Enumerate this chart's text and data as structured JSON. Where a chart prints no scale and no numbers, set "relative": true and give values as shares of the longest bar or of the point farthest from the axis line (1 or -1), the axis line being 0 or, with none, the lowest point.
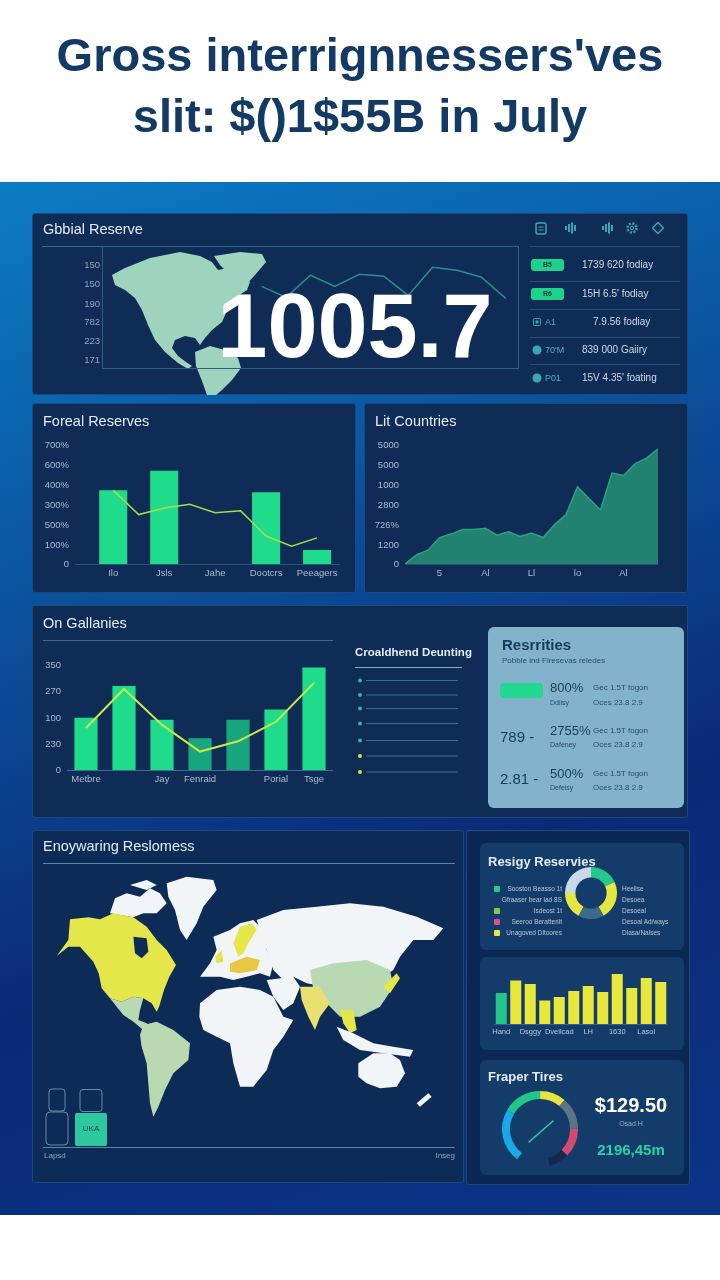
{
  "chart_data": [
    {
      "type": "other",
      "title": "Gross interrignnessers'ves slit: $()1$55B in July"
    },
    {
      "type": "line",
      "title": "Gbbial Reserve",
      "categories": [
        null,
        null,
        null,
        null,
        null,
        null,
        null,
        null,
        null,
        null,
        null,
        null,
        null,
        null,
        null,
        null,
        null
      ],
      "values": [
        null,
        null,
        null,
        null,
        null,
        null,
        0.81,
        0.7,
        0.92,
        0.81,
        0.93,
        0.91,
        0.72,
        1,
        0.97,
        0.9,
        0.69
      ],
      "color": "#2e8c8c",
      "relative": true,
      "annotations": [
        "150",
        "150",
        "190",
        "782",
        "223",
        "171",
        "1005.7"
      ]
    },
    {
      "type": "other",
      "annotations": [
        "B5",
        "1739 620 fodiay",
        "R6",
        "15H 6.5' fodiay",
        "A1",
        "7.9.56 fodiay",
        "70'M",
        "839 000 Gaiiry",
        "P01",
        "15V 4.35' foating"
      ]
    },
    {
      "type": "bar",
      "title": "Foreal Reserves",
      "categories": [
        "Ilo",
        null,
        "Jsls",
        null,
        "Jahe",
        null,
        "Dootcrs",
        null,
        "Peeagers"
      ],
      "series": [
        {
          "type": "bar",
          "color": "#1fdc8c",
          "values": [
            0.79,
            null,
            1,
            null,
            null,
            null,
            0.77,
            null,
            0.15
          ]
        },
        {
          "type": "line",
          "color": "#a8dc48",
          "values": [
            0.79,
            0.53,
            0.6,
            0.64,
            0.55,
            0.57,
            0.3,
            0.19,
            0.28
          ]
        }
      ],
      "relative": true,
      "annotations": [
        "700%",
        "600%",
        "400%",
        "300%",
        "500%",
        "100%",
        "0"
      ]
    },
    {
      "type": "area",
      "title": "Lit Countries",
      "categories": [
        null,
        null,
        null,
        "5",
        null,
        null,
        null,
        "Al",
        null,
        null,
        null,
        "Ll",
        null,
        null,
        null,
        "lo",
        null,
        null,
        null,
        "Al",
        null,
        null,
        null
      ],
      "values": [
        0,
        0.08,
        0.12,
        0.23,
        0.26,
        0.3,
        0.3,
        0.31,
        0.25,
        0.28,
        0.24,
        0.27,
        0.23,
        0.34,
        0.43,
        0.67,
        0.57,
        0.47,
        0.79,
        0.77,
        0.87,
        0.92,
        1
      ],
      "color": "#2aa37c",
      "relative": true,
      "annotations": [
        "5000",
        "5000",
        "1000",
        "2800",
        "726%",
        "1200",
        "0"
      ]
    },
    {
      "type": "bar",
      "title": "On Gallanies",
      "categories": [
        "Metbre",
        null,
        "Jay",
        "Fenraid",
        null,
        "Porial",
        "Tsge"
      ],
      "series": [
        {
          "type": "bar",
          "colors": [
            "#1fdc8c",
            "#1fdc8c",
            "#1fdc8c",
            "#18a67e",
            "#18a67e",
            "#1fdc8c",
            "#1fdc8c"
          ],
          "values": [
            0.51,
            0.82,
            0.49,
            0.31,
            0.49,
            0.59,
            1
          ]
        },
        {
          "type": "line",
          "color": "#c8e848",
          "values": [
            0.41,
            0.79,
            0.44,
            0.18,
            0.28,
            0.47,
            0.85
          ]
        }
      ],
      "relative": true,
      "annotations": [
        "350",
        "270",
        "100",
        "230",
        "0"
      ]
    },
    {
      "type": "other",
      "title": "Croaldhend Deunting"
    },
    {
      "type": "other",
      "title": "Resrrities",
      "subtitle": "Pobble ind Firesevas reledes",
      "annotations": [
        "800%",
        "Ddiisy",
        "Gec 1.5T fogon",
        "Oces 23.8 2.9",
        "789 -",
        "2755%",
        "Dafeney",
        "Gec 1.5T fogon",
        "Oces 23.8 2.9",
        "2.81 -",
        "500%",
        "Defeisy",
        "Gec 1.5T fogon",
        "Oces 23.8 2.9"
      ]
    },
    {
      "type": "other",
      "title": "Enoywaring Reslomess",
      "annotations": [
        "UKA",
        "Lapsd",
        "Inseg"
      ]
    },
    {
      "type": "donut",
      "title": "Resigy Reservies",
      "categories": [
        null,
        null,
        null,
        null,
        null
      ],
      "values": [
        18,
        24,
        16,
        17,
        25
      ],
      "colors": [
        "#22c88c",
        "#e6e640",
        "#3b6a8a",
        "#e6e640",
        "#c9d9ea"
      ],
      "annotations": [
        "Sooston Beasso 1t",
        "Gfraaser bear lad 8S",
        "Isdeost 1t",
        "Seeroo Beratteriit",
        "Unagoved Dltoores",
        "Heeilse",
        "Desoea",
        "Desoeal",
        "Desoal Ad/ways",
        "Dlasa/Nalses"
      ]
    },
    {
      "type": "bar",
      "categories": [
        "Hand",
        null,
        "Dsggy",
        null,
        "Dveilcad",
        null,
        "LH",
        null,
        "1630",
        null,
        "Lasol",
        null
      ],
      "values": [
        0.62,
        0.87,
        0.8,
        0.47,
        0.54,
        0.66,
        0.76,
        0.64,
        1,
        0.72,
        0.92,
        0.84
      ],
      "colors": [
        "#22c58a",
        "#e8e83c",
        "#e8e83c",
        "#e8e83c",
        "#e8e83c",
        "#e8e83c",
        "#e8e83c",
        "#e8e83c",
        "#e8e83c",
        "#e8e83c",
        "#e8e83c",
        "#e8e83c"
      ],
      "relative": true
    },
    {
      "type": "donut",
      "title": "Fraper Tires",
      "categories": [
        null,
        null,
        null,
        null,
        null,
        null
      ],
      "values": [
        27,
        19.5,
        13,
        16,
        14.5,
        10
      ],
      "colors": [
        "#1aa8e6",
        "#22c58a",
        "#e6e640",
        "#5c7488",
        "#d24a6e",
        "#16284a"
      ],
      "annotations": [
        "$129.50",
        "Osad H",
        "2196,45m"
      ]
    }
  ]
}
